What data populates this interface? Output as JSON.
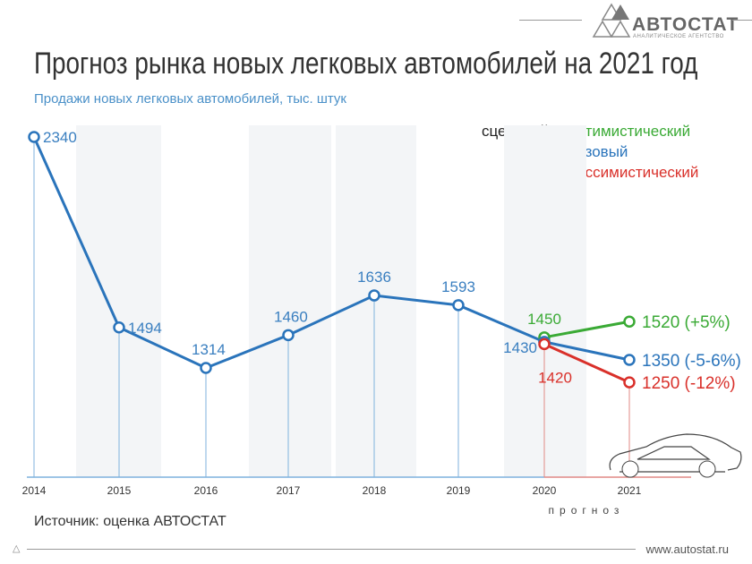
{
  "header": {
    "title": "Прогноз рынка новых легковых автомобилей на 2021 год",
    "subtitle": "Продажи новых легковых автомобилей, тыс. штук"
  },
  "logo": {
    "name": "АВТОСТАТ",
    "tagline": "АНАЛИТИЧЕСКОЕ АГЕНТСТВО"
  },
  "footer": {
    "source": "Источник: оценка АВТОСТАТ",
    "site": "www.autostat.ru"
  },
  "legend": {
    "label": "сценарий:",
    "items": [
      {
        "name": "оптимистический",
        "color": "#3aaa35"
      },
      {
        "name": "базовый",
        "color": "#2a74bb"
      },
      {
        "name": "пессимистический",
        "color": "#d9302a"
      }
    ]
  },
  "chart_data": {
    "type": "line",
    "title": "Прогноз рынка новых легковых автомобилей на 2021 год",
    "ylabel": "Продажи новых легковых автомобилей, тыс. штук",
    "categories": [
      "2014",
      "2015",
      "2016",
      "2017",
      "2018",
      "2019",
      "2020",
      "2021"
    ],
    "forecast_label": "прогноз",
    "grid": false,
    "history": {
      "color": "#2a74bb",
      "x": [
        "2014",
        "2015",
        "2016",
        "2017",
        "2018",
        "2019",
        "2020"
      ],
      "values": [
        2340,
        1494,
        1314,
        1460,
        1636,
        1593,
        1430
      ],
      "labels": [
        "2340",
        "1494",
        "1314",
        "1460",
        "1636",
        "1593",
        "1430"
      ]
    },
    "series": [
      {
        "name": "оптимистический",
        "color": "#3aaa35",
        "x": [
          "2020",
          "2021"
        ],
        "values": [
          1450,
          1520
        ],
        "labels": [
          "1450",
          "1520 (+5%)"
        ]
      },
      {
        "name": "базовый",
        "color": "#2a74bb",
        "x": [
          "2020",
          "2021"
        ],
        "values": [
          1430,
          1350
        ],
        "labels": [
          "",
          "1350 (-5-6%)"
        ]
      },
      {
        "name": "пессимистический",
        "color": "#d9302a",
        "x": [
          "2020",
          "2021"
        ],
        "values": [
          1420,
          1250
        ],
        "labels": [
          "1420",
          "1250 (-12%)"
        ]
      }
    ]
  }
}
